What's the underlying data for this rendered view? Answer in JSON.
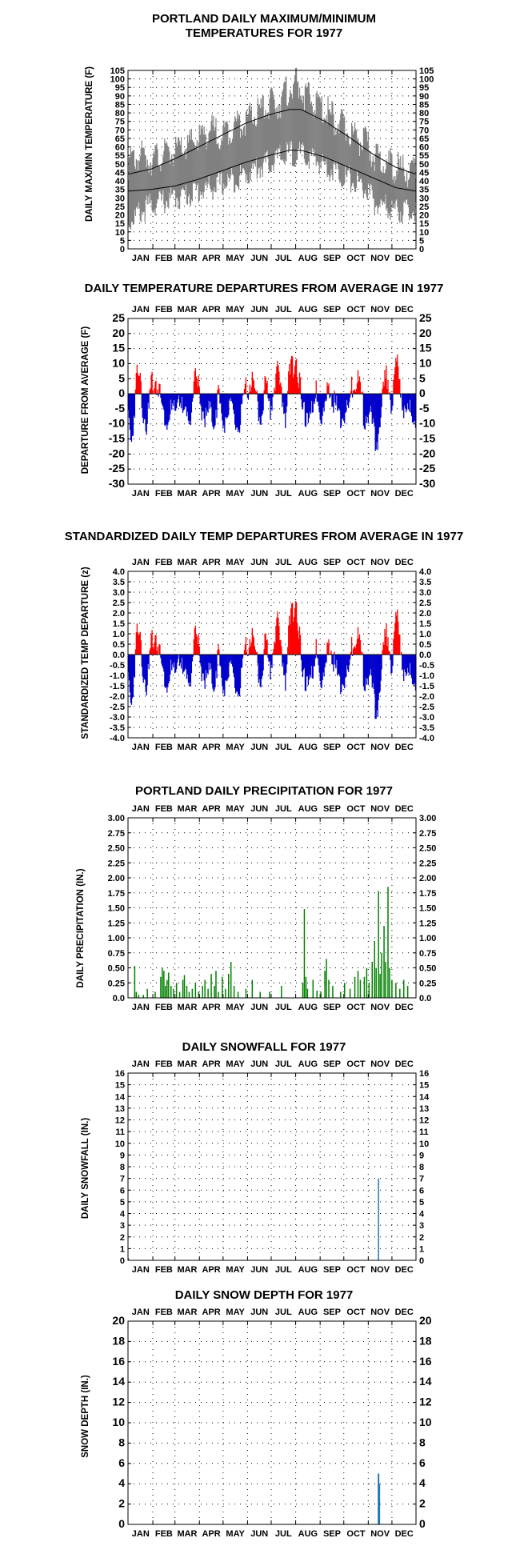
{
  "months": [
    "JAN",
    "FEB",
    "MAR",
    "APR",
    "MAY",
    "JUN",
    "JUL",
    "AUG",
    "SEP",
    "OCT",
    "NOV",
    "DEC"
  ],
  "chart_data": [
    {
      "id": "temps",
      "type": "line",
      "title": "PORTLAND DAILY MAXIMUM/MINIMUM",
      "title2": "TEMPERATURES FOR 1977",
      "ylabel": "DAILY MAX/MIN TEMPERATURE (F)",
      "ylim": [
        0,
        105
      ],
      "yticks": [
        0,
        5,
        10,
        15,
        20,
        25,
        30,
        35,
        40,
        45,
        50,
        55,
        60,
        65,
        70,
        75,
        80,
        85,
        90,
        95,
        100,
        105
      ],
      "xlim": [
        1,
        365
      ],
      "series": [],
      "colors": {
        "daily_range": "#808080",
        "normals": "#000000"
      },
      "daily_range_anchors": [
        [
          1,
          20,
          55
        ],
        [
          15,
          25,
          60
        ],
        [
          30,
          30,
          58
        ],
        [
          45,
          32,
          60
        ],
        [
          60,
          34,
          62
        ],
        [
          75,
          36,
          65
        ],
        [
          90,
          38,
          70
        ],
        [
          105,
          40,
          75
        ],
        [
          120,
          42,
          72
        ],
        [
          135,
          45,
          78
        ],
        [
          150,
          48,
          80
        ],
        [
          165,
          52,
          85
        ],
        [
          180,
          55,
          90
        ],
        [
          195,
          58,
          92
        ],
        [
          205,
          60,
          100
        ],
        [
          215,
          60,
          102
        ],
        [
          225,
          58,
          95
        ],
        [
          240,
          56,
          90
        ],
        [
          255,
          52,
          85
        ],
        [
          270,
          48,
          78
        ],
        [
          285,
          44,
          72
        ],
        [
          300,
          40,
          68
        ],
        [
          315,
          30,
          58
        ],
        [
          330,
          28,
          55
        ],
        [
          345,
          26,
          52
        ],
        [
          365,
          28,
          50
        ]
      ],
      "normal_anchors": [
        [
          1,
          44,
          34
        ],
        [
          30,
          47,
          35
        ],
        [
          60,
          53,
          37
        ],
        [
          90,
          60,
          41
        ],
        [
          120,
          67,
          46
        ],
        [
          150,
          74,
          51
        ],
        [
          180,
          79,
          55
        ],
        [
          205,
          82,
          58
        ],
        [
          220,
          82,
          58
        ],
        [
          250,
          75,
          54
        ],
        [
          280,
          66,
          48
        ],
        [
          310,
          56,
          42
        ],
        [
          340,
          48,
          36
        ],
        [
          365,
          44,
          34
        ]
      ],
      "grid": true
    },
    {
      "id": "departures",
      "type": "bar",
      "title": "DAILY TEMPERATURE DEPARTURES FROM AVERAGE IN 1977",
      "ylabel": "DEPARTURE FROM AVERAGE (F)",
      "ylim": [
        -30,
        25
      ],
      "yticks": [
        25,
        20,
        15,
        10,
        5,
        0,
        -5,
        -10,
        -15,
        -20,
        -25,
        -30
      ],
      "colors": {
        "positive": "#ff0000",
        "negative": "#0000cc"
      },
      "anchors": [
        [
          1,
          -5
        ],
        [
          5,
          -13
        ],
        [
          8,
          -4
        ],
        [
          12,
          9
        ],
        [
          16,
          7
        ],
        [
          20,
          -3
        ],
        [
          25,
          -8
        ],
        [
          30,
          5
        ],
        [
          35,
          8
        ],
        [
          40,
          4
        ],
        [
          45,
          -4
        ],
        [
          50,
          -6
        ],
        [
          55,
          -3
        ],
        [
          60,
          -5
        ],
        [
          65,
          3
        ],
        [
          70,
          -4
        ],
        [
          75,
          -7
        ],
        [
          80,
          -3
        ],
        [
          85,
          7
        ],
        [
          90,
          4
        ],
        [
          95,
          -3
        ],
        [
          100,
          -5
        ],
        [
          105,
          -4
        ],
        [
          110,
          -6
        ],
        [
          115,
          3
        ],
        [
          120,
          -8
        ],
        [
          125,
          -4
        ],
        [
          130,
          -3
        ],
        [
          135,
          -6
        ],
        [
          140,
          -9
        ],
        [
          145,
          -4
        ],
        [
          150,
          3
        ],
        [
          155,
          7
        ],
        [
          160,
          5
        ],
        [
          165,
          -3
        ],
        [
          170,
          -4
        ],
        [
          175,
          6
        ],
        [
          180,
          -3
        ],
        [
          185,
          5
        ],
        [
          190,
          9
        ],
        [
          195,
          3
        ],
        [
          200,
          -4
        ],
        [
          205,
          8
        ],
        [
          210,
          12
        ],
        [
          213,
          17
        ],
        [
          218,
          6
        ],
        [
          222,
          -6
        ],
        [
          225,
          -4
        ],
        [
          230,
          -3
        ],
        [
          235,
          -5
        ],
        [
          240,
          4
        ],
        [
          245,
          -3
        ],
        [
          250,
          -4
        ],
        [
          255,
          6
        ],
        [
          260,
          2
        ],
        [
          265,
          -3
        ],
        [
          270,
          -5
        ],
        [
          275,
          -4
        ],
        [
          280,
          -3
        ],
        [
          285,
          5
        ],
        [
          290,
          8
        ],
        [
          295,
          4
        ],
        [
          300,
          -5
        ],
        [
          305,
          -3
        ],
        [
          310,
          -8
        ],
        [
          315,
          -15
        ],
        [
          320,
          -7
        ],
        [
          325,
          5
        ],
        [
          330,
          10
        ],
        [
          335,
          -3
        ],
        [
          340,
          13
        ],
        [
          345,
          8
        ],
        [
          350,
          -4
        ],
        [
          355,
          -5
        ],
        [
          360,
          -3
        ],
        [
          365,
          -4
        ]
      ],
      "grid": true
    },
    {
      "id": "standardized",
      "type": "bar",
      "title": "STANDARDIZED DAILY TEMP DEPARTURES FROM AVERAGE IN 1977",
      "ylabel": "STANDARDIZED TEMP DEPARTURE (z)",
      "ylim": [
        -4,
        4
      ],
      "yticks": [
        "4.0",
        "3.5",
        "3.0",
        "2.5",
        "2.0",
        "1.5",
        "1.0",
        "0.5",
        "0.0",
        "-0.5",
        "-1.0",
        "-1.5",
        "-2.0",
        "-2.5",
        "-3.0",
        "-3.5",
        "-4.0"
      ],
      "colors": {
        "positive": "#ff0000",
        "negative": "#0000cc"
      },
      "anchors": [
        [
          1,
          -0.8
        ],
        [
          5,
          -2.0
        ],
        [
          8,
          -0.6
        ],
        [
          12,
          1.4
        ],
        [
          16,
          1.1
        ],
        [
          20,
          -0.4
        ],
        [
          25,
          -1.2
        ],
        [
          30,
          0.8
        ],
        [
          35,
          1.5
        ],
        [
          40,
          0.6
        ],
        [
          45,
          -0.6
        ],
        [
          50,
          -1.0
        ],
        [
          55,
          -0.4
        ],
        [
          60,
          -0.8
        ],
        [
          65,
          0.5
        ],
        [
          70,
          -0.6
        ],
        [
          75,
          -1.1
        ],
        [
          80,
          -0.5
        ],
        [
          85,
          1.2
        ],
        [
          90,
          0.7
        ],
        [
          95,
          -0.5
        ],
        [
          100,
          -0.8
        ],
        [
          105,
          -0.6
        ],
        [
          110,
          -1.0
        ],
        [
          115,
          0.5
        ],
        [
          120,
          -1.4
        ],
        [
          125,
          -0.7
        ],
        [
          130,
          -0.5
        ],
        [
          135,
          -1.0
        ],
        [
          140,
          -1.5
        ],
        [
          145,
          -0.7
        ],
        [
          150,
          0.5
        ],
        [
          155,
          1.3
        ],
        [
          160,
          0.9
        ],
        [
          165,
          -0.5
        ],
        [
          170,
          -0.7
        ],
        [
          175,
          1.1
        ],
        [
          180,
          -0.5
        ],
        [
          185,
          1.0
        ],
        [
          190,
          1.8
        ],
        [
          195,
          0.5
        ],
        [
          200,
          -0.7
        ],
        [
          205,
          1.6
        ],
        [
          210,
          2.5
        ],
        [
          213,
          3.4
        ],
        [
          218,
          1.2
        ],
        [
          222,
          -1.2
        ],
        [
          225,
          -0.8
        ],
        [
          230,
          -0.5
        ],
        [
          235,
          -1.0
        ],
        [
          240,
          0.8
        ],
        [
          245,
          -0.6
        ],
        [
          250,
          -0.8
        ],
        [
          255,
          1.1
        ],
        [
          260,
          0.4
        ],
        [
          265,
          -0.6
        ],
        [
          270,
          -1.0
        ],
        [
          275,
          -0.8
        ],
        [
          280,
          -0.6
        ],
        [
          285,
          0.8
        ],
        [
          290,
          1.4
        ],
        [
          295,
          0.7
        ],
        [
          300,
          -0.8
        ],
        [
          305,
          -0.5
        ],
        [
          310,
          -1.3
        ],
        [
          315,
          -2.6
        ],
        [
          320,
          -1.2
        ],
        [
          325,
          0.8
        ],
        [
          330,
          1.6
        ],
        [
          335,
          -0.5
        ],
        [
          340,
          2.2
        ],
        [
          345,
          1.4
        ],
        [
          350,
          -0.7
        ],
        [
          355,
          -0.9
        ],
        [
          360,
          -0.5
        ],
        [
          365,
          -0.7
        ]
      ],
      "grid": true
    },
    {
      "id": "precip",
      "type": "bar",
      "title": "PORTLAND DAILY PRECIPITATION FOR 1977",
      "ylabel": "DAILY PRECIPITATION (IN.)",
      "ylim": [
        0,
        3.0
      ],
      "yticks": [
        "3.00",
        "2.75",
        "2.50",
        "2.25",
        "2.00",
        "1.75",
        "1.50",
        "1.25",
        "1.00",
        "0.75",
        "0.50",
        "0.25",
        "0.0"
      ],
      "colors": {
        "bars": "#008000"
      },
      "days": [
        [
          9,
          0.53
        ],
        [
          11,
          0.1
        ],
        [
          14,
          0.05
        ],
        [
          20,
          0.05
        ],
        [
          25,
          0.15
        ],
        [
          35,
          0.1
        ],
        [
          42,
          0.35
        ],
        [
          44,
          0.5
        ],
        [
          46,
          0.45
        ],
        [
          48,
          0.2
        ],
        [
          50,
          0.3
        ],
        [
          52,
          0.42
        ],
        [
          55,
          0.2
        ],
        [
          58,
          0.15
        ],
        [
          62,
          0.25
        ],
        [
          66,
          0.1
        ],
        [
          70,
          0.3
        ],
        [
          72,
          0.38
        ],
        [
          75,
          0.2
        ],
        [
          78,
          0.1
        ],
        [
          82,
          0.15
        ],
        [
          86,
          0.25
        ],
        [
          90,
          0.1
        ],
        [
          95,
          0.2
        ],
        [
          98,
          0.3
        ],
        [
          102,
          0.15
        ],
        [
          106,
          0.4
        ],
        [
          110,
          0.2
        ],
        [
          112,
          0.45
        ],
        [
          115,
          0.1
        ],
        [
          120,
          0.35
        ],
        [
          124,
          0.15
        ],
        [
          128,
          0.4
        ],
        [
          131,
          0.6
        ],
        [
          135,
          0.2
        ],
        [
          140,
          0.1
        ],
        [
          150,
          0.15
        ],
        [
          158,
          0.3
        ],
        [
          168,
          0.1
        ],
        [
          180,
          0.1
        ],
        [
          195,
          0.2
        ],
        [
          222,
          0.25
        ],
        [
          224,
          1.48
        ],
        [
          226,
          0.35
        ],
        [
          228,
          0.15
        ],
        [
          235,
          0.3
        ],
        [
          240,
          0.12
        ],
        [
          245,
          0.1
        ],
        [
          250,
          0.45
        ],
        [
          252,
          0.65
        ],
        [
          255,
          0.3
        ],
        [
          260,
          0.2
        ],
        [
          270,
          0.1
        ],
        [
          275,
          0.25
        ],
        [
          282,
          0.15
        ],
        [
          288,
          0.35
        ],
        [
          292,
          0.45
        ],
        [
          295,
          0.3
        ],
        [
          300,
          0.35
        ],
        [
          303,
          0.5
        ],
        [
          306,
          0.25
        ],
        [
          310,
          0.6
        ],
        [
          313,
          0.95
        ],
        [
          315,
          0.5
        ],
        [
          318,
          1.78
        ],
        [
          320,
          0.4
        ],
        [
          322,
          0.75
        ],
        [
          325,
          1.2
        ],
        [
          327,
          0.6
        ],
        [
          330,
          1.85
        ],
        [
          332,
          0.5
        ],
        [
          335,
          0.3
        ],
        [
          340,
          0.25
        ],
        [
          345,
          0.15
        ],
        [
          350,
          0.3
        ],
        [
          355,
          0.2
        ]
      ],
      "grid": true
    },
    {
      "id": "snowfall",
      "type": "bar",
      "title": "DAILY SNOWFALL FOR 1977",
      "ylabel": "DAILY SNOWFALL (IN.)",
      "ylim": [
        0,
        16
      ],
      "yticks": [
        "16",
        "15",
        "14",
        "13",
        "12",
        "11",
        "10",
        "9",
        "8",
        "7",
        "6",
        "5",
        "4",
        "3",
        "2",
        "1",
        "0"
      ],
      "colors": {
        "bars": "#1f77b4"
      },
      "days": [
        [
          1,
          0.2
        ],
        [
          318,
          7.0
        ]
      ],
      "grid": true
    },
    {
      "id": "snowdepth",
      "type": "bar",
      "title": "DAILY SNOW DEPTH FOR 1977",
      "ylabel": "SNOW DEPTH (IN.)",
      "ylim": [
        0,
        20
      ],
      "yticks": [
        "20",
        "18",
        "16",
        "14",
        "12",
        "10",
        "8",
        "6",
        "4",
        "2",
        "0"
      ],
      "colors": {
        "bars": "#1f77b4"
      },
      "days": [
        [
          318,
          5.0
        ],
        [
          319,
          4.0
        ]
      ],
      "grid": true
    }
  ]
}
